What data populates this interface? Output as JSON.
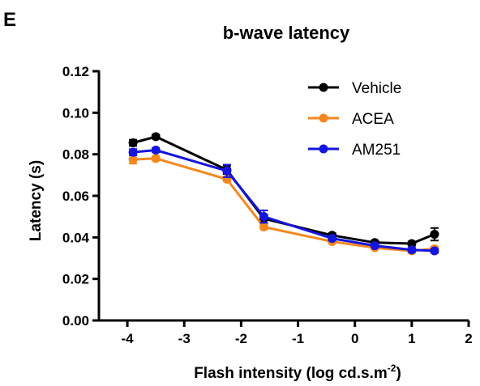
{
  "panel_letter": "E",
  "chart_data": {
    "type": "line",
    "title": "b-wave latency",
    "xlabel_main": "Flash intensity (log cd.s.m",
    "xlabel_sup": "-2",
    "xlabel_close": ")",
    "ylabel": "Latency (s)",
    "xlim": [
      -4.5,
      2
    ],
    "ylim": [
      0,
      0.12
    ],
    "x_ticks": [
      -4,
      -3,
      -2,
      -1,
      0,
      1,
      2
    ],
    "x_tick_labels": [
      "-4",
      "-3",
      "-2",
      "-1",
      "0",
      "1",
      "2"
    ],
    "y_ticks": [
      0,
      0.02,
      0.04,
      0.06,
      0.08,
      0.1,
      0.12
    ],
    "y_tick_labels": [
      "0.00",
      "0.02",
      "0.04",
      "0.06",
      "0.08",
      "0.10",
      "0.12"
    ],
    "legend_position": "top-right",
    "series": [
      {
        "name": "Vehicle",
        "color": "#000000",
        "x": [
          -3.9,
          -3.5,
          -2.25,
          -1.6,
          -0.4,
          0.35,
          1.0,
          1.4
        ],
        "y": [
          0.0855,
          0.0885,
          0.0725,
          0.049,
          0.041,
          0.0375,
          0.037,
          0.0415
        ],
        "err": [
          0.0015,
          0.001,
          0.002,
          0.002,
          0.001,
          0.001,
          0.001,
          0.003
        ]
      },
      {
        "name": "ACEA",
        "color": "#f5871f",
        "x": [
          -3.9,
          -3.5,
          -2.25,
          -1.6,
          -0.4,
          0.35,
          1.0,
          1.4
        ],
        "y": [
          0.0775,
          0.078,
          0.068,
          0.045,
          0.038,
          0.035,
          0.0335,
          0.0345
        ],
        "err": [
          0.002,
          0.001,
          0.001,
          0.001,
          0.001,
          0.0008,
          0.0008,
          0.001
        ]
      },
      {
        "name": "AM251",
        "color": "#1515e0",
        "x": [
          -3.9,
          -3.5,
          -2.25,
          -1.6,
          -0.4,
          0.35,
          1.0,
          1.4
        ],
        "y": [
          0.081,
          0.082,
          0.072,
          0.05,
          0.0395,
          0.036,
          0.034,
          0.0335
        ],
        "err": [
          0.0015,
          0.001,
          0.003,
          0.003,
          0.001,
          0.001,
          0.001,
          0.001
        ]
      }
    ]
  }
}
